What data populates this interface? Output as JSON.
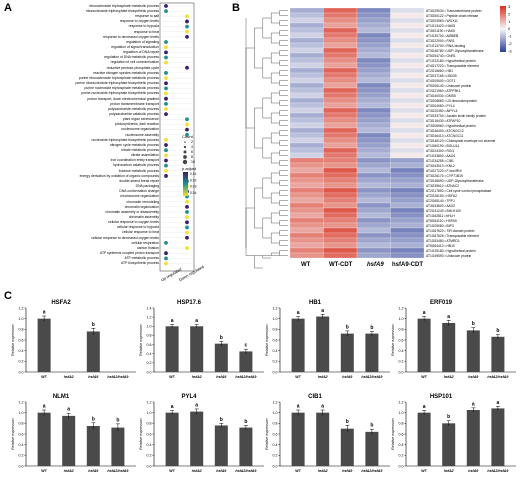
{
  "panels": {
    "a": "A",
    "b": "B",
    "c": "C"
  },
  "chart_data": [
    {
      "type": "scatter",
      "panel": "A",
      "xlabel": "",
      "ylabel": "",
      "x_categories": [
        "Up regulated",
        "Down regulated"
      ],
      "terms": [
        "ribonucleoside triphosphate metabolic process",
        "ribonucleoside triphosphate biosynthetic process",
        "response to salt",
        "response to oxygen levels",
        "response to hypoxia",
        "response to heat",
        "response to decreased oxygen levels",
        "regulation of signaling",
        "regulation of signal transduction",
        "regulation of DNA repair",
        "regulation of DNA metabolic process",
        "regulation of cell communication",
        "reductive pentose-phosphate cycle",
        "reactive nitrogen species metabolic process",
        "purine ribonucleoside triphosphate metabolic process",
        "purine ribonucleoside triphosphate biosynthetic process",
        "purine nucleoside triphosphate metabolic process",
        "purine nucleoside triphosphate biosynthetic process",
        "proton transport, down electrochemical gradient",
        "proton transmembrane transport",
        "polysaccharide metabolic process",
        "polysaccharide catabolic process",
        "plant organ senescence",
        "photosynthesis, dark reaction",
        "nucleosome organization",
        "nucleosome assembly",
        "nucleoside triphosphate biosynthetic process",
        "nitrogen cycle metabolic process",
        "nitrate metabolic process",
        "nitrate assimilation",
        "iron coordination entity transport",
        "hydrocarbon catabolic process",
        "fructose metabolic process",
        "energy derivation by oxidation of organic compounds",
        "double-strand break repair",
        "DNA packaging",
        "DNA conformation change",
        "chromosome organization",
        "chromatin remodeling",
        "chromatin organization",
        "chromatin assembly or disassembly",
        "chromatin assembly",
        "cellular response to oxygen levels",
        "cellular response to hypoxia",
        "cellular response to heat",
        "cellular response to decreased oxygen levels",
        "cellular respiration",
        "carbon fixation",
        "ATP synthesis coupled proton transport",
        "ATP metabolic process",
        "ATP biosynthetic process"
      ],
      "points": [
        {
          "term": 0,
          "group": "Up regulated"
        },
        {
          "term": 1,
          "group": "Up regulated"
        },
        {
          "term": 2,
          "group": "Down regulated"
        },
        {
          "term": 3,
          "group": "Down regulated"
        },
        {
          "term": 4,
          "group": "Down regulated"
        },
        {
          "term": 5,
          "group": "Down regulated"
        },
        {
          "term": 6,
          "group": "Down regulated"
        },
        {
          "term": 7,
          "group": "Up regulated"
        },
        {
          "term": 8,
          "group": "Up regulated"
        },
        {
          "term": 9,
          "group": "Up regulated"
        },
        {
          "term": 10,
          "group": "Up regulated"
        },
        {
          "term": 11,
          "group": "Up regulated"
        },
        {
          "term": 12,
          "group": "Down regulated"
        },
        {
          "term": 13,
          "group": "Up regulated"
        },
        {
          "term": 14,
          "group": "Up regulated"
        },
        {
          "term": 15,
          "group": "Up regulated"
        },
        {
          "term": 16,
          "group": "Up regulated"
        },
        {
          "term": 17,
          "group": "Up regulated"
        },
        {
          "term": 18,
          "group": "Up regulated"
        },
        {
          "term": 19,
          "group": "Up regulated"
        },
        {
          "term": 20,
          "group": "Up regulated"
        },
        {
          "term": 21,
          "group": "Up regulated"
        },
        {
          "term": 22,
          "group": "Down regulated"
        },
        {
          "term": 23,
          "group": "Down regulated"
        },
        {
          "term": 24,
          "group": "Down regulated"
        },
        {
          "term": 25,
          "group": "Down regulated"
        },
        {
          "term": 26,
          "group": "Up regulated"
        },
        {
          "term": 27,
          "group": "Up regulated"
        },
        {
          "term": 28,
          "group": "Up regulated"
        },
        {
          "term": 29,
          "group": "Up regulated"
        },
        {
          "term": 30,
          "group": "Up regulated"
        },
        {
          "term": 31,
          "group": "Up regulated"
        },
        {
          "term": 32,
          "group": "Up regulated"
        },
        {
          "term": 33,
          "group": "Up regulated"
        },
        {
          "term": 34,
          "group": "Down regulated"
        },
        {
          "term": 35,
          "group": "Down regulated"
        },
        {
          "term": 36,
          "group": "Down regulated"
        },
        {
          "term": 37,
          "group": "Down regulated"
        },
        {
          "term": 38,
          "group": "Down regulated"
        },
        {
          "term": 39,
          "group": "Down regulated"
        },
        {
          "term": 40,
          "group": "Down regulated"
        },
        {
          "term": 41,
          "group": "Down regulated"
        },
        {
          "term": 42,
          "group": "Down regulated"
        },
        {
          "term": 43,
          "group": "Down regulated"
        },
        {
          "term": 44,
          "group": "Down regulated"
        },
        {
          "term": 45,
          "group": "Down regulated"
        },
        {
          "term": 46,
          "group": "Up regulated"
        },
        {
          "term": 47,
          "group": "Down regulated"
        },
        {
          "term": 48,
          "group": "Up regulated"
        },
        {
          "term": 49,
          "group": "Up regulated"
        },
        {
          "term": 50,
          "group": "Up regulated"
        }
      ],
      "legend_count_title": "Count",
      "legend_count_values": [
        2,
        4,
        6,
        8,
        10
      ],
      "legend_color_title": "p.adjust",
      "legend_color_ticks": [
        "0.01",
        "0.02",
        "0.03",
        "0.04"
      ],
      "colors": {
        "low": "#3b1e6e",
        "mid": "#21908d",
        "high": "#f2e12e"
      }
    },
    {
      "type": "heatmap",
      "panel": "B",
      "columns": [
        "WT",
        "WT-CDT",
        "hsfA9",
        "hsfA9-CDT"
      ],
      "rows": [
        "AT3G29034 • Transmembrane protein",
        "AT3G50122 • Peptide chain release",
        "AT3G03960 • WOX11",
        "AT1G13420 • HAK5",
        "AT3G01190 • HAK5",
        "AT1G30700 • AIBBEB",
        "AT3G22000 • FAR1",
        "AT1G13700 • RNA-binding",
        "AT3G46780 • UDP-Glycosyltransferase",
        "AT5G54740 • GNR1",
        "AT1G22180 • Hypothetical protein",
        "AT4G17220 • Transposable element",
        "AT2G16660 • HB1",
        "AT3G37165 • LBD39",
        "AT4G00600 • GGT1",
        "AT5G06140 • Unknown protein",
        "AT2G21960 • ATPP5K1",
        "AT3G40030 • DMS5",
        "AT3G08680 • U3 ribonucleoprotein",
        "AT3G04080 • PYL4",
        "AT3G20350 • AtPYL4",
        "AT3G33700 • Jacalin lectin family protein",
        "AT3G16430 • ATPAP10",
        "AT3G06960 • Hypothetical protein",
        "AT3G46400 • ATCNGC12",
        "AT3G46410 • ATCNGC11",
        "AT3G46120 • Chloroplast envelope ion channel",
        "AT1G60190 • BGLU14",
        "AT3G24300 • RGI1",
        "AT1G43800 • AAO4",
        "AT1G34255 • CIB1",
        "AT3G43010 • KNL2",
        "AT4G27220 • F-box/RNI",
        "AT3G26170 • CYP71B19",
        "AT3G46690 • UDP-Glycosyltransferase",
        "AT3G39610 • ATNAC2",
        "AT2G17850 • Cell cycle control phosphatase",
        "AT2G26150 • HSFA2",
        "AT2G65140 • TPPJ",
        "AT3G43600 • AAO2",
        "AT2G41240 • BHLH100",
        "AT1G62811 • bHLH",
        "AT5G54110 • HSFA9",
        "AT1G09080 • BIP3",
        "AT1G67620 • TIR domain protein",
        "AT1G67626 • Transposable element",
        "AT1G53480 • ATMRD1",
        "AT5G64410 • HB10",
        "AT1G25180 • Hypothetical protein",
        "AT1G49590 • Unknown protein"
      ],
      "scale_max": 3,
      "scale_min": -3,
      "colorbar_ticks": [
        "3",
        "2",
        "1",
        "0",
        "-1",
        "-2",
        "-3"
      ],
      "colors": {
        "high": "#d7301f",
        "mid": "#f7f7f7",
        "low": "#2c3e99"
      }
    },
    {
      "type": "bar",
      "panel": "C",
      "title": "HSFA2",
      "categories": [
        "WT",
        "hsfA2",
        "hsfA9",
        "hsfA2/hsfA9"
      ],
      "values": [
        1.0,
        0.0,
        0.76,
        0.0
      ],
      "errors": [
        0.05,
        0,
        0.06,
        0
      ],
      "letters": [
        "a",
        "",
        "b",
        ""
      ],
      "ylabel": "Relative expression",
      "ylim": [
        0,
        1.2
      ]
    },
    {
      "type": "bar",
      "panel": "C",
      "title": "HSP17.6",
      "categories": [
        "WT",
        "hsfA2",
        "hsfA9",
        "hsfA2/hsfA9"
      ],
      "values": [
        1.0,
        1.0,
        0.62,
        0.45
      ],
      "errors": [
        0.04,
        0.04,
        0.05,
        0.05
      ],
      "letters": [
        "a",
        "a",
        "b",
        "c"
      ],
      "ylabel": "Relative expression",
      "ylim": [
        0,
        1.4
      ]
    },
    {
      "type": "bar",
      "panel": "C",
      "title": "HB1",
      "categories": [
        "WT",
        "hsfA2",
        "hsfA9",
        "hsfA2/hsfA9"
      ],
      "values": [
        1.0,
        1.04,
        0.72,
        0.72
      ],
      "errors": [
        0.04,
        0.04,
        0.05,
        0.04
      ],
      "letters": [
        "a",
        "a",
        "b",
        "b"
      ],
      "ylabel": "Relative expression",
      "ylim": [
        0,
        1.2
      ]
    },
    {
      "type": "bar",
      "panel": "C",
      "title": "ERF019",
      "categories": [
        "WT",
        "hsfA2",
        "hsfA9",
        "hsfA2/hsfA9"
      ],
      "values": [
        1.0,
        0.92,
        0.78,
        0.66
      ],
      "errors": [
        0.04,
        0.05,
        0.05,
        0.04
      ],
      "letters": [
        "a",
        "a",
        "b",
        "b"
      ],
      "ylabel": "Relative expression",
      "ylim": [
        0,
        1.2
      ]
    },
    {
      "type": "bar",
      "panel": "C",
      "title": "NLM1",
      "categories": [
        "WT",
        "hsfA2",
        "hsfA9",
        "hsfA2/hsfA9"
      ],
      "values": [
        1.0,
        0.94,
        0.75,
        0.72
      ],
      "errors": [
        0.05,
        0.05,
        0.06,
        0.07
      ],
      "letters": [
        "a",
        "a",
        "b",
        "b"
      ],
      "ylabel": "Relative expression",
      "ylim": [
        0,
        1.2
      ]
    },
    {
      "type": "bar",
      "panel": "C",
      "title": "PYL4",
      "categories": [
        "WT",
        "hsfA2",
        "hsfA9",
        "hsfA2/hsfA9"
      ],
      "values": [
        1.0,
        1.02,
        0.76,
        0.72
      ],
      "errors": [
        0.04,
        0.05,
        0.04,
        0.04
      ],
      "letters": [
        "a",
        "a",
        "b",
        "b"
      ],
      "ylabel": "Relative expression",
      "ylim": [
        0,
        1.2
      ]
    },
    {
      "type": "bar",
      "panel": "C",
      "title": "CIB1",
      "categories": [
        "WT",
        "hsfA2",
        "hsfA9",
        "hsfA2/hsfA9"
      ],
      "values": [
        1.0,
        1.0,
        0.7,
        0.64
      ],
      "errors": [
        0.05,
        0.05,
        0.06,
        0.05
      ],
      "letters": [
        "a",
        "a",
        "b",
        "b"
      ],
      "ylabel": "Relative expression",
      "ylim": [
        0,
        1.2
      ]
    },
    {
      "type": "bar",
      "panel": "C",
      "title": "HSP101",
      "categories": [
        "WT",
        "hsfA2",
        "hsfA9",
        "hsfA2/hsfA9"
      ],
      "values": [
        1.0,
        0.8,
        1.05,
        1.08
      ],
      "errors": [
        0.04,
        0.05,
        0.04,
        0.04
      ],
      "letters": [
        "a",
        "b",
        "a",
        "a"
      ],
      "ylabel": "Relative expression",
      "ylim": [
        0,
        1.2
      ]
    }
  ]
}
